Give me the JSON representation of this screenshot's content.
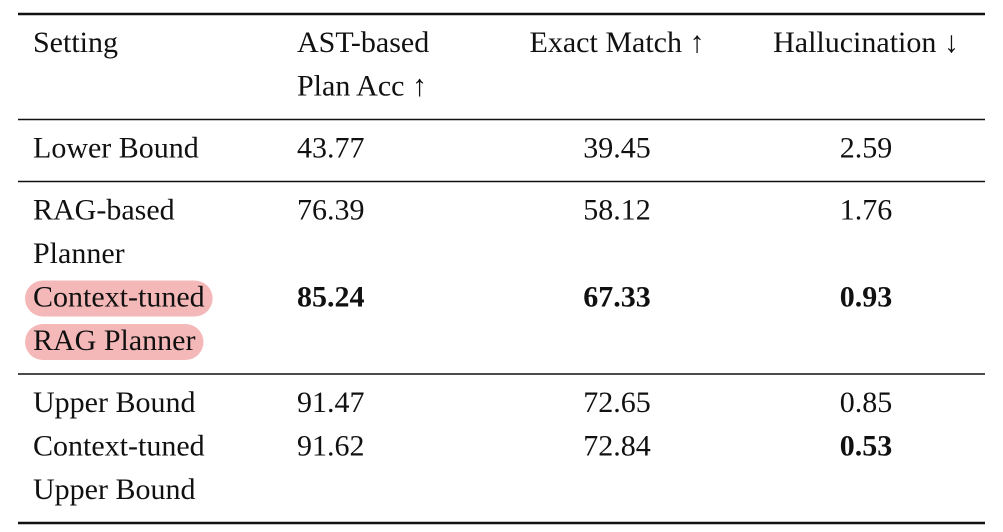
{
  "table": {
    "header": [
      {
        "lines": [
          "Setting"
        ]
      },
      {
        "lines": [
          "AST-based",
          "Plan Acc ↑"
        ]
      },
      {
        "lines": [
          "Exact Match ↑"
        ]
      },
      {
        "lines": [
          "Hallucination ↓"
        ]
      }
    ],
    "groups": [
      [
        {
          "cells": [
            {
              "lines": [
                "Lower Bound"
              ]
            },
            {
              "lines": [
                "43.77"
              ]
            },
            {
              "lines": [
                "39.45"
              ]
            },
            {
              "lines": [
                "2.59"
              ]
            }
          ]
        }
      ],
      [
        {
          "cells": [
            {
              "lines": [
                "RAG-based",
                "Planner"
              ]
            },
            {
              "lines": [
                "76.39"
              ]
            },
            {
              "lines": [
                "58.12"
              ]
            },
            {
              "lines": [
                "1.76"
              ]
            }
          ]
        },
        {
          "highlight": true,
          "cells": [
            {
              "lines": [
                "Context-tuned",
                "RAG Planner"
              ]
            },
            {
              "lines": [
                "85.24"
              ],
              "bold": true
            },
            {
              "lines": [
                "67.33"
              ],
              "bold": true
            },
            {
              "lines": [
                "0.93"
              ],
              "bold": true
            }
          ]
        }
      ],
      [
        {
          "cells": [
            {
              "lines": [
                "Upper Bound"
              ]
            },
            {
              "lines": [
                "91.47"
              ]
            },
            {
              "lines": [
                "72.65"
              ]
            },
            {
              "lines": [
                "0.85"
              ]
            }
          ]
        },
        {
          "cells": [
            {
              "lines": [
                "Context-tuned",
                "Upper Bound"
              ]
            },
            {
              "lines": [
                "91.62"
              ]
            },
            {
              "lines": [
                "72.84"
              ]
            },
            {
              "lines": [
                "0.53"
              ],
              "bold": true
            }
          ]
        }
      ]
    ]
  }
}
